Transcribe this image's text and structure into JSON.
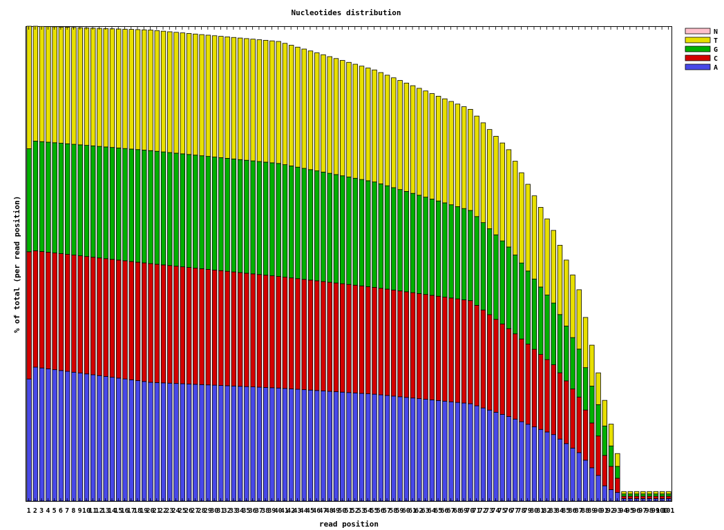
{
  "chart_data": {
    "type": "bar",
    "stacked": true,
    "title": "Nucleotides distribution",
    "xlabel": "read position",
    "ylabel": "% of total (per read position)",
    "grid": false,
    "legend_position": "right",
    "positions": 101,
    "series_order_bottom_to_top": [
      "A",
      "C",
      "G",
      "T",
      "N"
    ],
    "legend": [
      {
        "name": "N",
        "color": "#ffc0cb"
      },
      {
        "name": "T",
        "color": "#e8e000"
      },
      {
        "name": "G",
        "color": "#00b000"
      },
      {
        "name": "C",
        "color": "#d40000"
      },
      {
        "name": "A",
        "color": "#4848e8"
      }
    ],
    "key_points": [
      {
        "pos": 1,
        "total": 100,
        "A": 25.7,
        "C": 26.8,
        "G": 21.7,
        "T": 25.8
      },
      {
        "pos": 2,
        "total": 100,
        "A": 28.2,
        "C": 24.5,
        "G": 23.1,
        "T": 24.2
      },
      {
        "pos": 20,
        "total": 99.2,
        "A": 25.0,
        "C": 25.0,
        "G": 23.8,
        "T": 25.4
      },
      {
        "pos": 40,
        "total": 96.8,
        "A": 23.8,
        "C": 23.5,
        "G": 23.8,
        "T": 25.7
      },
      {
        "pos": 55,
        "total": 90.8,
        "A": 22.5,
        "C": 22.5,
        "G": 22.2,
        "T": 23.6
      },
      {
        "pos": 70,
        "total": 82.5,
        "A": 20.5,
        "C": 21.7,
        "G": 19.0,
        "T": 21.3
      },
      {
        "pos": 76,
        "total": 74.0,
        "A": 17.8,
        "C": 18.5,
        "G": 17.2,
        "T": 20.5
      },
      {
        "pos": 83,
        "total": 57.0,
        "A": 14.0,
        "C": 14.7,
        "G": 13.0,
        "T": 15.3
      },
      {
        "pos": 87,
        "total": 44.5,
        "A": 10.2,
        "C": 11.7,
        "G": 10.1,
        "T": 12.5
      },
      {
        "pos": 90,
        "total": 27.0,
        "A": 5.4,
        "C": 8.3,
        "G": 6.6,
        "T": 6.7
      },
      {
        "pos": 91,
        "total": 21.2,
        "A": 3.2,
        "C": 6.4,
        "G": 6.2,
        "T": 5.4
      },
      {
        "pos": 92,
        "total": 16.2,
        "A": 2.4,
        "C": 4.9,
        "G": 4.3,
        "T": 4.6
      },
      {
        "pos": 93,
        "total": 10.0,
        "A": 1.8,
        "C": 3.0,
        "G": 2.5,
        "T": 2.7
      },
      {
        "pos": 94,
        "total": 2.0,
        "A": 0.5,
        "C": 0.5,
        "G": 0.5,
        "T": 0.5
      },
      {
        "pos": 101,
        "total": 2.0,
        "A": 0.5,
        "C": 0.5,
        "G": 0.5,
        "T": 0.5
      }
    ]
  }
}
